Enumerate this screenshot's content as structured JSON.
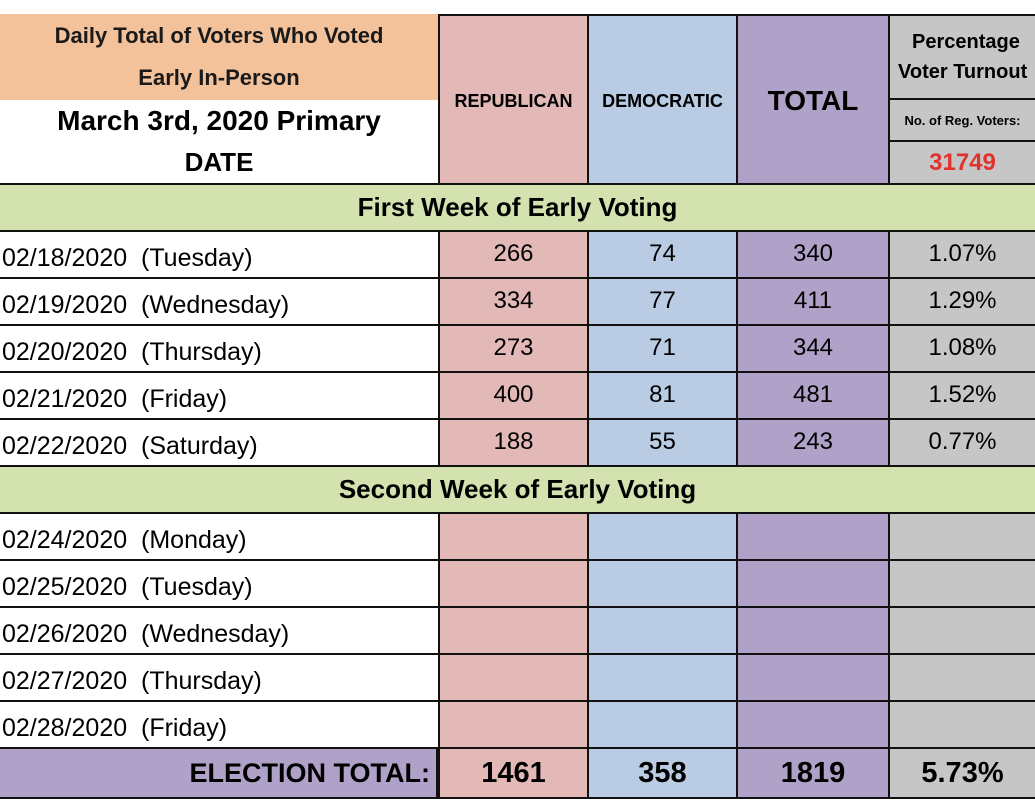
{
  "header": {
    "title": "Daily Total of Voters Who Voted Early In-Person",
    "election": "March 3rd, 2020 Primary",
    "date_label": "DATE",
    "columns": [
      "REPUBLICAN",
      "DEMOCRATIC",
      "TOTAL"
    ],
    "turnout": {
      "title_lines": [
        "Percentage",
        "Voter Turnout"
      ],
      "reg_label": "No. of Reg. Voters:",
      "reg_voters": 31749
    }
  },
  "sections": [
    {
      "title": "First Week of Early Voting",
      "rows": [
        {
          "date": "02/18/2020  (Tuesday)",
          "republican": 266,
          "democratic": 74,
          "total": 340,
          "turnout": "1.07%"
        },
        {
          "date": "02/19/2020  (Wednesday)",
          "republican": 334,
          "democratic": 77,
          "total": 411,
          "turnout": "1.29%"
        },
        {
          "date": "02/20/2020  (Thursday)",
          "republican": 273,
          "democratic": 71,
          "total": 344,
          "turnout": "1.08%"
        },
        {
          "date": "02/21/2020  (Friday)",
          "republican": 400,
          "democratic": 81,
          "total": 481,
          "turnout": "1.52%"
        },
        {
          "date": "02/22/2020  (Saturday)",
          "republican": 188,
          "democratic": 55,
          "total": 243,
          "turnout": "0.77%"
        }
      ]
    },
    {
      "title": "Second Week of Early Voting",
      "rows": [
        {
          "date": "02/24/2020  (Monday)"
        },
        {
          "date": "02/25/2020  (Tuesday)"
        },
        {
          "date": "02/26/2020  (Wednesday)"
        },
        {
          "date": "02/27/2020  (Thursday)"
        },
        {
          "date": "02/28/2020  (Friday)"
        }
      ]
    }
  ],
  "total": {
    "label": "ELECTION TOTAL:",
    "republican": 1461,
    "democratic": 358,
    "total": 1819,
    "turnout": "5.73%"
  }
}
